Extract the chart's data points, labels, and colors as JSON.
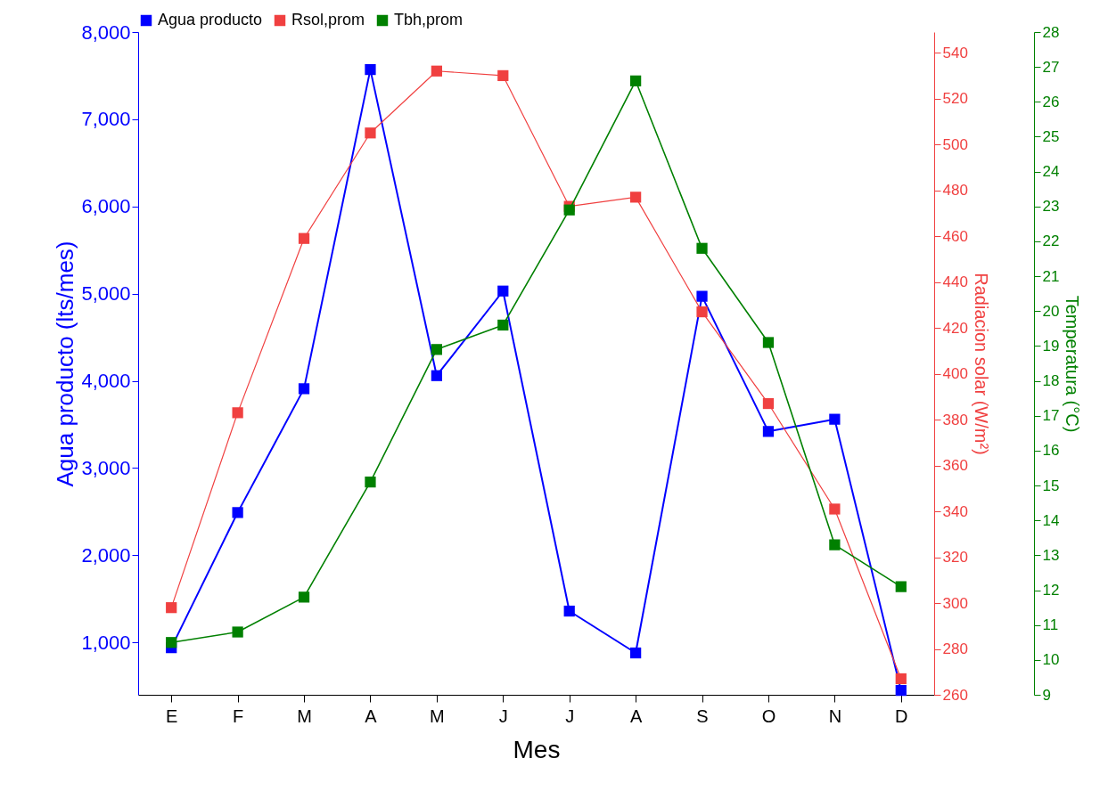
{
  "chart_data": {
    "type": "line",
    "xlabel": "Mes",
    "ylabel": "Agua producto (lts/mes)",
    "y2label": "Radiacion solar (W/m²)",
    "y3label": "Temperatura (°C)",
    "categories": [
      "E",
      "F",
      "M",
      "A",
      "M",
      "J",
      "J",
      "A",
      "S",
      "O",
      "N",
      "D"
    ],
    "series": [
      {
        "name": "Agua producto",
        "color": "#0000ff",
        "axis": "y",
        "values": [
          940,
          2490,
          3910,
          7570,
          4060,
          5030,
          1360,
          880,
          4970,
          3420,
          3560,
          450
        ]
      },
      {
        "name": "Rsol,prom",
        "color": "#f04040",
        "axis": "y2",
        "values": [
          298,
          383,
          459,
          505,
          532,
          530,
          473,
          477,
          427,
          387,
          341,
          267
        ]
      },
      {
        "name": "Tbh,prom",
        "color": "#008000",
        "axis": "y3",
        "values": [
          10.5,
          10.8,
          11.8,
          15.1,
          18.9,
          19.6,
          22.9,
          26.6,
          21.8,
          19.1,
          13.3,
          12.1
        ]
      }
    ],
    "ylim": [
      400,
      8000
    ],
    "yticks": [
      {
        "value": 1000,
        "label": "1,000"
      },
      {
        "value": 2000,
        "label": "2,000"
      },
      {
        "value": 3000,
        "label": "3,000"
      },
      {
        "value": 4000,
        "label": "4,000"
      },
      {
        "value": 5000,
        "label": "5,000"
      },
      {
        "value": 6000,
        "label": "6,000"
      },
      {
        "value": 7000,
        "label": "7,000"
      },
      {
        "value": 8000,
        "label": "8,000"
      }
    ],
    "y2lim": [
      260,
      549
    ],
    "y2ticks": [
      260,
      280,
      300,
      320,
      340,
      360,
      380,
      400,
      420,
      440,
      460,
      480,
      500,
      520,
      540
    ],
    "y3lim": [
      9,
      28
    ],
    "y3ticks": [
      9,
      10,
      11,
      12,
      13,
      14,
      15,
      16,
      17,
      18,
      19,
      20,
      21,
      22,
      23,
      24,
      25,
      26,
      27,
      28
    ],
    "grid": false,
    "legend": "top",
    "marker": "square",
    "line_style": "solid"
  }
}
